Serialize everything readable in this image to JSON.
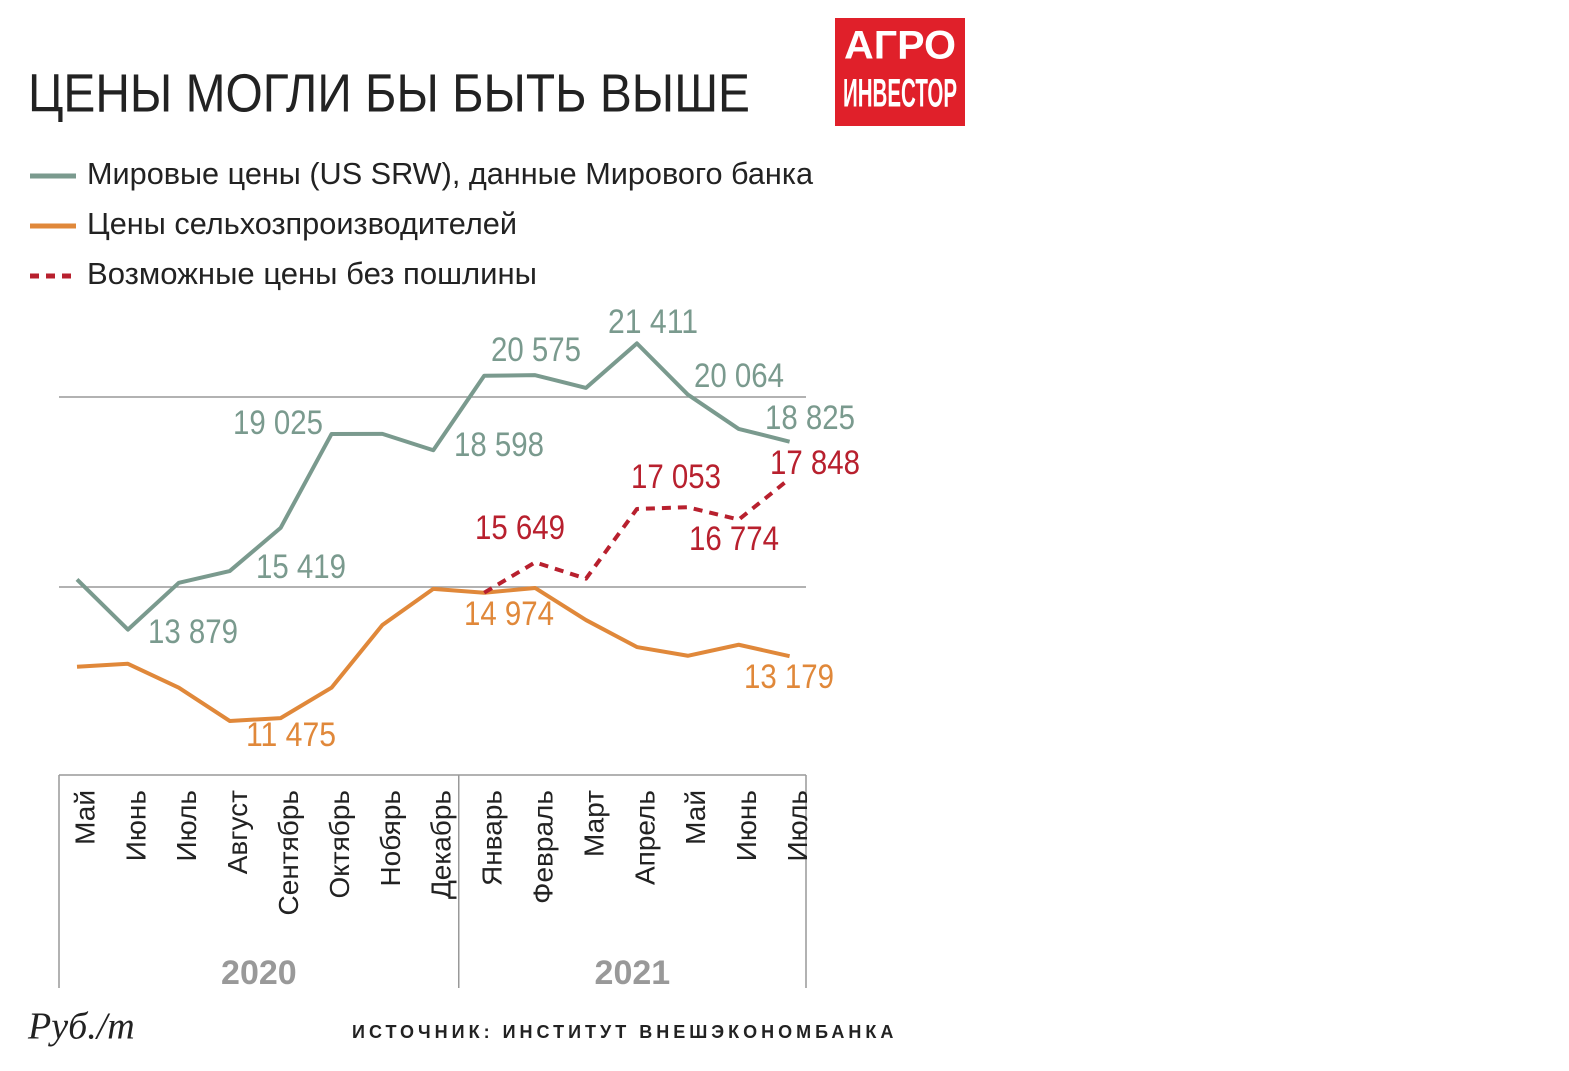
{
  "chart_data": {
    "type": "line",
    "title": "ЦЕНЫ МОГЛИ БЫ БЫТЬ ВЫШЕ",
    "logo": [
      "АГРО",
      "ИНВЕСТОР"
    ],
    "categories": [
      "Май",
      "Июнь",
      "Июль",
      "Август",
      "Сентябрь",
      "Октябрь",
      "Нобярь",
      "Декабрь",
      "Январь",
      "Февраль",
      "Март",
      "Апрель",
      "Май",
      "Июнь",
      "Июль"
    ],
    "years": [
      {
        "label": "2020",
        "from": 0,
        "to": 7
      },
      {
        "label": "2021",
        "from": 8,
        "to": 14
      }
    ],
    "series": [
      {
        "name": "Мировые цены (US SRW), данные Мирового банка",
        "color": "#7a9a8e",
        "dash": false,
        "values": [
          15200,
          13879,
          15110,
          15419,
          16555,
          19025,
          19030,
          18598,
          20560,
          20575,
          20240,
          21411,
          20064,
          19160,
          18825
        ],
        "value_labels": [
          null,
          "13 879",
          null,
          "15 419",
          null,
          "19 025",
          null,
          "18 598",
          null,
          "20 575",
          null,
          "21 411",
          "20 064",
          null,
          "18 825"
        ]
      },
      {
        "name": "Цены сельхозпроизводителей",
        "color": "#e0883a",
        "dash": false,
        "values": [
          12900,
          12980,
          12350,
          11475,
          11550,
          12350,
          14000,
          14950,
          14850,
          14974,
          14130,
          13420,
          13190,
          13480,
          13179
        ],
        "value_labels": [
          null,
          null,
          null,
          "11 475",
          null,
          null,
          null,
          null,
          null,
          "14 974",
          null,
          null,
          null,
          null,
          "13 179"
        ]
      },
      {
        "name": "Возможные цены без пошлины",
        "color": "#b8202e",
        "dash": true,
        "values": [
          null,
          null,
          null,
          null,
          null,
          null,
          null,
          null,
          14850,
          15649,
          15220,
          17053,
          17100,
          16774,
          17848
        ],
        "value_labels": [
          null,
          null,
          null,
          null,
          null,
          null,
          null,
          null,
          null,
          "15 649",
          null,
          "17 053",
          null,
          "16 774",
          "17 848"
        ]
      }
    ],
    "ylim": [
      10000,
      22000
    ],
    "yticks": [
      15000,
      20000
    ],
    "grid": true,
    "unit": "Руб./т",
    "source": "ИСТОЧНИК: ИНСТИТУТ ВНЕШЭКОНОМБАНКА"
  }
}
